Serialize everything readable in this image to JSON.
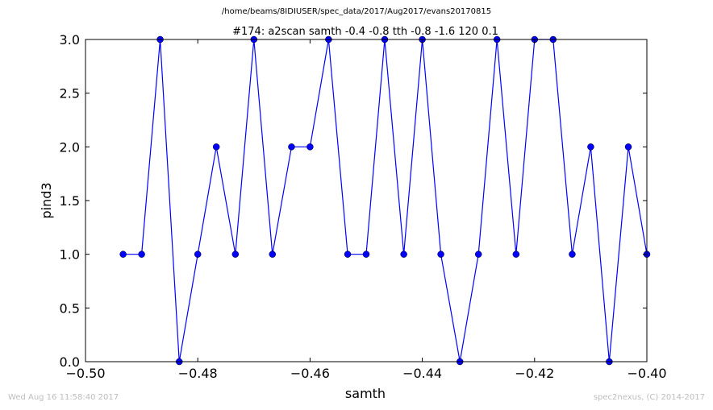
{
  "suptitle": "/home/beams/8IDIUSER/spec_data/2017/Aug2017/evans20170815",
  "footer": {
    "timestamp": "Wed Aug 16 11:58:40 2017",
    "credit": "spec2nexus, (C) 2014-2017"
  },
  "colors": {
    "series": "#0000ff",
    "marker_edge": "#000000",
    "axes": "#000000"
  },
  "chart_data": {
    "type": "line",
    "title": "#174: a2scan  samth -0.4 -0.8  tth -0.8 -1.6  120 0.1",
    "xlabel": "samth",
    "ylabel": "pind3",
    "xlim": [
      -0.5,
      -0.4
    ],
    "ylim": [
      0.0,
      3.0
    ],
    "xticks": [
      -0.5,
      -0.48,
      -0.46,
      -0.44,
      -0.42,
      -0.4
    ],
    "xtick_labels": [
      "−0.50",
      "−0.48",
      "−0.46",
      "−0.44",
      "−0.42",
      "−0.40"
    ],
    "yticks": [
      0.0,
      0.5,
      1.0,
      1.5,
      2.0,
      2.5,
      3.0
    ],
    "ytick_labels": [
      "0.0",
      "0.5",
      "1.0",
      "1.5",
      "2.0",
      "2.5",
      "3.0"
    ],
    "grid": false,
    "series": [
      {
        "marker": "circle",
        "x": [
          -0.4933,
          -0.49,
          -0.4867,
          -0.4833,
          -0.48,
          -0.4767,
          -0.4733,
          -0.47,
          -0.4667,
          -0.4633,
          -0.46,
          -0.4567,
          -0.4533,
          -0.45,
          -0.4467,
          -0.4433,
          -0.44,
          -0.4367,
          -0.4333,
          -0.43,
          -0.4267,
          -0.4233,
          -0.42,
          -0.4167,
          -0.4133,
          -0.41,
          -0.4067,
          -0.4033,
          -0.4
        ],
        "y": [
          1,
          1,
          3,
          0,
          1,
          2,
          1,
          3,
          1,
          2,
          2,
          3,
          1,
          1,
          3,
          1,
          3,
          1,
          0,
          1,
          3,
          1,
          3,
          3,
          1,
          2,
          0,
          2,
          1
        ]
      }
    ]
  }
}
